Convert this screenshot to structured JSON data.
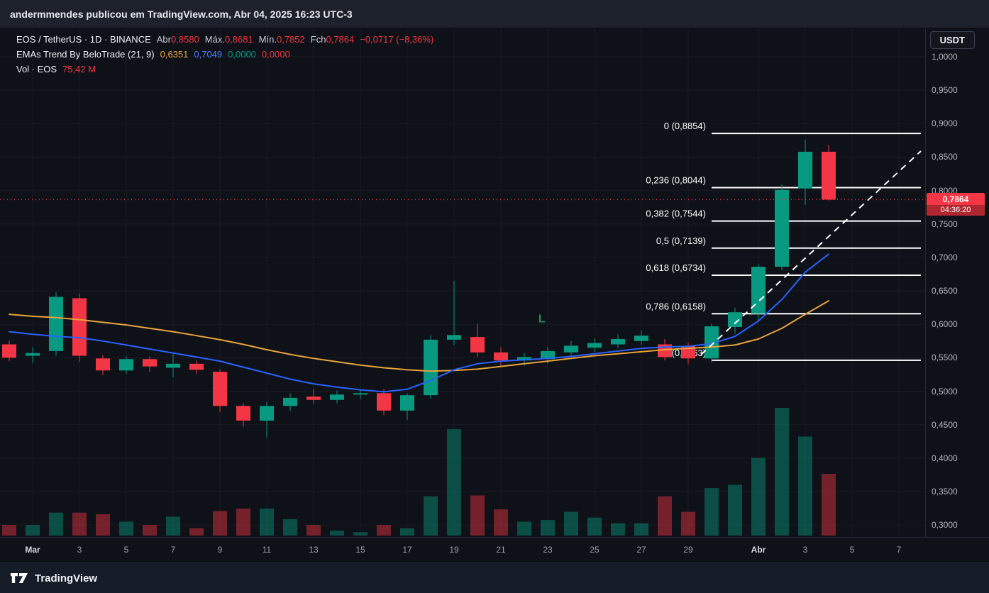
{
  "page": {
    "publish_line": "andermmendes publicou em TradingView.com, Abr 04, 2025 16:23 UTC-3",
    "brand": "TradingView"
  },
  "currency_button": "USDT",
  "legend": {
    "row1": {
      "title": "EOS / TetherUS · 1D · BINANCE",
      "o_label": "Abr",
      "o": "0,8580",
      "h_label": "Máx.",
      "h": "0,8681",
      "l_label": "Mín.",
      "l": "0,7852",
      "c_label": "Fch",
      "c": "0,7864",
      "change": "−0,0717 (−8,36%)"
    },
    "row2": {
      "title": "EMAs Trend By BeloTrade (21, 9)",
      "v1": "0,6351",
      "v2": "0,7049",
      "v3": "0,0000",
      "v4": "0,0000"
    },
    "row3": {
      "title": "Vol · EOS",
      "value": "75,42 M"
    }
  },
  "price_label": {
    "price": "0,7864",
    "countdown": "04:36:20"
  },
  "price_axis": {
    "labels": [
      "1,0000",
      "0,9500",
      "0,9000",
      "0,8500",
      "0,8000",
      "0,7500",
      "0,7000",
      "0,6500",
      "0,6000",
      "0,5500",
      "0,5000",
      "0,4500",
      "0,4000",
      "0,3500",
      "0,3000"
    ]
  },
  "time_axis": [
    {
      "label": "Mar",
      "i": 1,
      "major": true
    },
    {
      "label": "3",
      "i": 3
    },
    {
      "label": "5",
      "i": 5
    },
    {
      "label": "7",
      "i": 7
    },
    {
      "label": "9",
      "i": 9
    },
    {
      "label": "11",
      "i": 11
    },
    {
      "label": "13",
      "i": 13
    },
    {
      "label": "15",
      "i": 15
    },
    {
      "label": "17",
      "i": 17
    },
    {
      "label": "19",
      "i": 19
    },
    {
      "label": "21",
      "i": 21
    },
    {
      "label": "23",
      "i": 23
    },
    {
      "label": "25",
      "i": 25
    },
    {
      "label": "27",
      "i": 27
    },
    {
      "label": "29",
      "i": 29
    },
    {
      "label": "Abr",
      "i": 32,
      "major": true
    },
    {
      "label": "3",
      "i": 34
    },
    {
      "label": "5",
      "i": 36
    },
    {
      "label": "7",
      "i": 38
    }
  ],
  "colors": {
    "up": "#089981",
    "down": "#f23645",
    "vol_up": "rgba(8,153,129,0.45)",
    "vol_down": "rgba(242,54,69,0.45)",
    "ema21": "#e8a33c",
    "ema9": "#2962ff",
    "fib": "#ffffff",
    "trend": "#ffffff",
    "last_price_line": "#f23645",
    "long_marker": "#2e8b57"
  },
  "chart_data": {
    "type": "candlestick",
    "symbol": "EOS / TetherUS",
    "exchange": "BINANCE",
    "interval": "1D",
    "last_price": 0.7864,
    "last_candle": {
      "open": 0.858,
      "high": 0.8681,
      "low": 0.7852,
      "close": 0.7864,
      "volume_m": 75.42
    },
    "price_range": [
      0.3,
      1.0
    ],
    "candles": [
      {
        "o": 0.57,
        "h": 0.576,
        "l": 0.545,
        "c": 0.55,
        "v": 13
      },
      {
        "o": 0.553,
        "h": 0.566,
        "l": 0.542,
        "c": 0.557,
        "v": 13
      },
      {
        "o": 0.56,
        "h": 0.648,
        "l": 0.553,
        "c": 0.641,
        "v": 28
      },
      {
        "o": 0.639,
        "h": 0.646,
        "l": 0.544,
        "c": 0.553,
        "v": 28
      },
      {
        "o": 0.549,
        "h": 0.554,
        "l": 0.524,
        "c": 0.531,
        "v": 26
      },
      {
        "o": 0.531,
        "h": 0.552,
        "l": 0.526,
        "c": 0.548,
        "v": 17
      },
      {
        "o": 0.548,
        "h": 0.552,
        "l": 0.529,
        "c": 0.537,
        "v": 13
      },
      {
        "o": 0.535,
        "h": 0.558,
        "l": 0.521,
        "c": 0.541,
        "v": 23
      },
      {
        "o": 0.541,
        "h": 0.546,
        "l": 0.526,
        "c": 0.532,
        "v": 9
      },
      {
        "o": 0.529,
        "h": 0.533,
        "l": 0.469,
        "c": 0.478,
        "v": 30
      },
      {
        "o": 0.478,
        "h": 0.482,
        "l": 0.447,
        "c": 0.456,
        "v": 33
      },
      {
        "o": 0.456,
        "h": 0.484,
        "l": 0.431,
        "c": 0.478,
        "v": 33
      },
      {
        "o": 0.478,
        "h": 0.497,
        "l": 0.47,
        "c": 0.49,
        "v": 20
      },
      {
        "o": 0.492,
        "h": 0.504,
        "l": 0.481,
        "c": 0.487,
        "v": 13
      },
      {
        "o": 0.487,
        "h": 0.501,
        "l": 0.482,
        "c": 0.495,
        "v": 6
      },
      {
        "o": 0.495,
        "h": 0.502,
        "l": 0.488,
        "c": 0.497,
        "v": 4
      },
      {
        "o": 0.497,
        "h": 0.503,
        "l": 0.464,
        "c": 0.471,
        "v": 13
      },
      {
        "o": 0.471,
        "h": 0.497,
        "l": 0.457,
        "c": 0.494,
        "v": 9
      },
      {
        "o": 0.494,
        "h": 0.584,
        "l": 0.489,
        "c": 0.577,
        "v": 48
      },
      {
        "o": 0.577,
        "h": 0.665,
        "l": 0.569,
        "c": 0.584,
        "v": 130
      },
      {
        "o": 0.581,
        "h": 0.601,
        "l": 0.551,
        "c": 0.558,
        "v": 49
      },
      {
        "o": 0.558,
        "h": 0.566,
        "l": 0.537,
        "c": 0.546,
        "v": 32
      },
      {
        "o": 0.546,
        "h": 0.557,
        "l": 0.538,
        "c": 0.551,
        "v": 17
      },
      {
        "o": 0.548,
        "h": 0.566,
        "l": 0.541,
        "c": 0.56,
        "v": 19
      },
      {
        "o": 0.558,
        "h": 0.575,
        "l": 0.553,
        "c": 0.568,
        "v": 29
      },
      {
        "o": 0.565,
        "h": 0.579,
        "l": 0.559,
        "c": 0.572,
        "v": 22
      },
      {
        "o": 0.57,
        "h": 0.585,
        "l": 0.564,
        "c": 0.578,
        "v": 15
      },
      {
        "o": 0.575,
        "h": 0.591,
        "l": 0.569,
        "c": 0.583,
        "v": 15
      },
      {
        "o": 0.57,
        "h": 0.578,
        "l": 0.546,
        "c": 0.551,
        "v": 48
      },
      {
        "o": 0.568,
        "h": 0.573,
        "l": 0.54,
        "c": 0.549,
        "v": 29
      },
      {
        "o": 0.549,
        "h": 0.601,
        "l": 0.543,
        "c": 0.597,
        "v": 58
      },
      {
        "o": 0.596,
        "h": 0.625,
        "l": 0.586,
        "c": 0.618,
        "v": 62
      },
      {
        "o": 0.616,
        "h": 0.69,
        "l": 0.606,
        "c": 0.686,
        "v": 95
      },
      {
        "o": 0.686,
        "h": 0.809,
        "l": 0.681,
        "c": 0.801,
        "v": 156
      },
      {
        "o": 0.803,
        "h": 0.876,
        "l": 0.779,
        "c": 0.858,
        "v": 121
      },
      {
        "o": 0.858,
        "h": 0.8681,
        "l": 0.7852,
        "c": 0.7864,
        "v": 75.42
      }
    ],
    "ema21": [
      0.615,
      0.612,
      0.61,
      0.607,
      0.603,
      0.599,
      0.594,
      0.589,
      0.583,
      0.577,
      0.57,
      0.562,
      0.555,
      0.549,
      0.544,
      0.539,
      0.535,
      0.532,
      0.53,
      0.531,
      0.533,
      0.537,
      0.541,
      0.545,
      0.549,
      0.553,
      0.556,
      0.559,
      0.562,
      0.564,
      0.566,
      0.569,
      0.578,
      0.594,
      0.615,
      0.6351
    ],
    "ema9": [
      0.589,
      0.585,
      0.582,
      0.58,
      0.575,
      0.569,
      0.563,
      0.557,
      0.551,
      0.545,
      0.536,
      0.527,
      0.518,
      0.511,
      0.506,
      0.502,
      0.499,
      0.503,
      0.516,
      0.532,
      0.541,
      0.545,
      0.547,
      0.549,
      0.552,
      0.556,
      0.56,
      0.564,
      0.566,
      0.567,
      0.571,
      0.582,
      0.605,
      0.637,
      0.678,
      0.7049
    ],
    "fib_retracement": {
      "x1_index": 30,
      "x2_index": 38.94,
      "levels": [
        {
          "label": "0 (0,8854)",
          "price": 0.8854
        },
        {
          "label": "0,236 (0,8044)",
          "price": 0.8044
        },
        {
          "label": "0,382 (0,7544)",
          "price": 0.7544
        },
        {
          "label": "0,5 (0,7139)",
          "price": 0.7139
        },
        {
          "label": "0,618 (0,6734)",
          "price": 0.6734
        },
        {
          "label": "0,786 (0,6158)",
          "price": 0.6158
        },
        {
          "label": "1 (0,5463)",
          "price": 0.5463
        }
      ]
    },
    "trend_line": {
      "x1_index": 29.55,
      "price1": 0.5546,
      "x2_index": 38.94,
      "price2": 0.859,
      "style": "dashed"
    },
    "long_marker": {
      "index": 22.75,
      "price": 0.608,
      "text": "L"
    }
  }
}
